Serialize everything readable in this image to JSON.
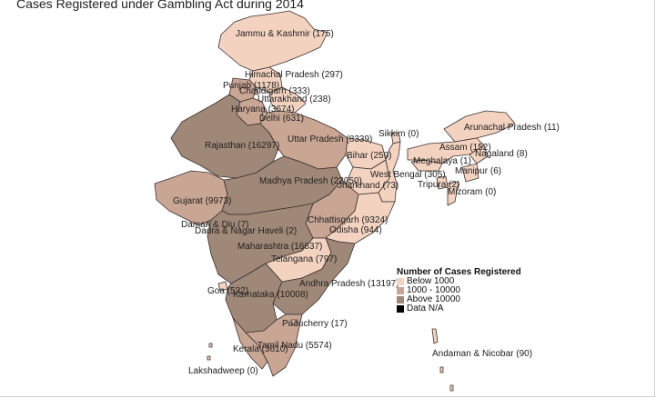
{
  "title": "Cases Registered under Gambling Act during 2014",
  "legend": {
    "title": "Number of Cases Registered",
    "items": [
      {
        "label": "Below 1000",
        "color": "#f3d3c0"
      },
      {
        "label": "1000 - 10000",
        "color": "#c9a593"
      },
      {
        "label": "Above 10000",
        "color": "#a08878"
      },
      {
        "label": "Data N/A",
        "color": "#000000"
      }
    ]
  },
  "colors": {
    "below": "#f3d3c0",
    "mid": "#c9a593",
    "above": "#a08878",
    "border": "#3a3030",
    "na": "#000000"
  },
  "regions": [
    {
      "name": "Jammu & Kashmir",
      "label": "Jammu & Kashmir (175)",
      "value": 175
    },
    {
      "name": "Himachal Pradesh",
      "label": "Himachal Pradesh (297)",
      "value": 297
    },
    {
      "name": "Punjab",
      "label": "Punjab (1178)",
      "value": 1178
    },
    {
      "name": "Chandigarh",
      "label": "Chandigarh (333)",
      "value": 333
    },
    {
      "name": "Uttarakhand",
      "label": "Uttarakhand (238)",
      "value": 238
    },
    {
      "name": "Haryana",
      "label": "Haryana (3674)",
      "value": 3674
    },
    {
      "name": "Delhi",
      "label": "Delhi (631)",
      "value": 631
    },
    {
      "name": "Rajasthan",
      "label": "Rajasthan (16297)",
      "value": 16297
    },
    {
      "name": "Uttar Pradesh",
      "label": "Uttar Pradesh (8339)",
      "value": 8339
    },
    {
      "name": "Sikkim",
      "label": "Sikkim (0)",
      "value": 0
    },
    {
      "name": "Arunachal Pradesh",
      "label": "Arunachal Pradesh (11)",
      "value": 11
    },
    {
      "name": "Assam",
      "label": "Assam (152)",
      "value": 152
    },
    {
      "name": "Nagaland",
      "label": "Nagaland (8)",
      "value": 8
    },
    {
      "name": "Meghalaya",
      "label": "Meghalaya (1)",
      "value": 1
    },
    {
      "name": "Bihar",
      "label": "Bihar (259)",
      "value": 259
    },
    {
      "name": "Manipur",
      "label": "Manipur (6)",
      "value": 6
    },
    {
      "name": "West Bengal",
      "label": "West Bengal (305)",
      "value": 305
    },
    {
      "name": "Tripura",
      "label": "Tripura (2)",
      "value": 2
    },
    {
      "name": "Jharkhand",
      "label": "Jharkhand (73)",
      "value": 73
    },
    {
      "name": "Mizoram",
      "label": "Mizoram (0)",
      "value": 0
    },
    {
      "name": "Gujarat",
      "label": "Gujarat (9973)",
      "value": 9973
    },
    {
      "name": "Madhya Pradesh",
      "label": "Madhya Pradesh (22050)",
      "value": 22050
    },
    {
      "name": "Daman & Diu",
      "label": "Daman & Diu (7)",
      "value": 7
    },
    {
      "name": "Dadra & Nagar Haveli",
      "label": "Dadra & Nagar Haveli (2)",
      "value": 2
    },
    {
      "name": "Chhattisgarh",
      "label": "Chhattisgarh (9324)",
      "value": 9324
    },
    {
      "name": "Odisha",
      "label": "Odisha (944)",
      "value": 944
    },
    {
      "name": "Maharashtra",
      "label": "Maharashtra (16637)",
      "value": 16637
    },
    {
      "name": "Telangana",
      "label": "Telangana (797)",
      "value": 797
    },
    {
      "name": "Andhra Pradesh",
      "label": "Andhra Pradesh (13197)",
      "value": 13197
    },
    {
      "name": "Goa",
      "label": "Goa (532)",
      "value": 532
    },
    {
      "name": "Karnataka",
      "label": "Karnataka (10008)",
      "value": 10008
    },
    {
      "name": "Puducherry",
      "label": "Puducherry (17)",
      "value": 17
    },
    {
      "name": "Kerala",
      "label": "Kerala (3610)",
      "value": 3610
    },
    {
      "name": "Tamil Nadu",
      "label": "Tamil Nadu (5574)",
      "value": 5574
    },
    {
      "name": "Andaman & Nicobar",
      "label": "Andaman & Nicobar (90)",
      "value": 90
    },
    {
      "name": "Lakshadweep",
      "label": "Lakshadweep (0)",
      "value": 0
    }
  ]
}
